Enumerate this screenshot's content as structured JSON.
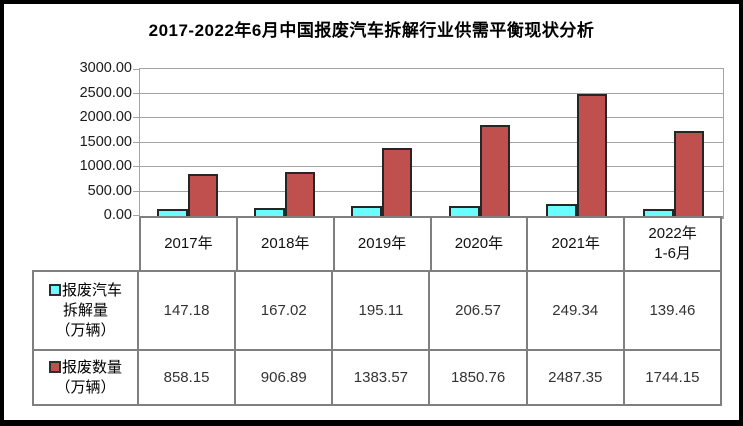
{
  "chart_data": {
    "type": "bar",
    "title": "2017-2022年6月中国报废汽车拆解行业供需平衡现状分析",
    "categories": [
      "2017年",
      "2018年",
      "2019年",
      "2020年",
      "2021年",
      "2022年\n1-6月"
    ],
    "series": [
      {
        "name": "报废汽车拆解量（万辆）",
        "legend_lines": [
          "报废汽车",
          "拆解量",
          "（万辆）"
        ],
        "color": "#6bfcff",
        "border_color": "#262626",
        "values": [
          147.18,
          167.02,
          195.11,
          206.57,
          249.34,
          139.46
        ]
      },
      {
        "name": "报废数量（万辆）",
        "legend_lines": [
          "报废数量",
          "（万辆）"
        ],
        "color": "#c0504d",
        "border_color": "#262626",
        "values": [
          858.15,
          906.89,
          1383.57,
          1850.76,
          2487.35,
          1744.15
        ]
      }
    ],
    "xlabel": "",
    "ylabel": "",
    "ylim": [
      0,
      3000
    ],
    "ytick_step": 500,
    "ytick_labels": [
      "0.00",
      "500.00",
      "1000.00",
      "1500.00",
      "2000.00",
      "2500.00",
      "3000.00"
    ],
    "grid": true,
    "legend_position": "table-left",
    "value_format_decimals": 2
  },
  "colors": {
    "frame_border": "#000000",
    "plot_border": "#a3a3a3",
    "gridline": "#a3a3a3",
    "axis_line": "#9a9a9a",
    "table_border": "#7f7f7f",
    "background": "#ffffff",
    "title_text": "#000000",
    "value_text": "#333333"
  }
}
